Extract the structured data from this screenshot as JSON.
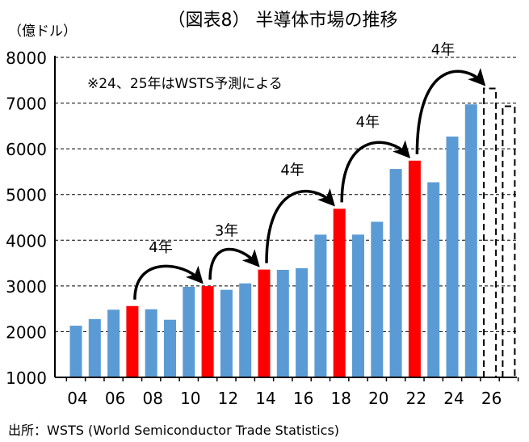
{
  "chart_data": {
    "type": "bar",
    "title": "（図表8） 半導体市場の推移",
    "ylabel": "（億ドル）",
    "note": "※24、25年はWSTS予測による",
    "source": "出所：WSTS (World Semiconductor Trade Statistics)",
    "ylim": [
      1000,
      8000
    ],
    "yticks": [
      "1000",
      "2000",
      "3000",
      "4000",
      "5000",
      "6000",
      "7000",
      "8000"
    ],
    "xticks": [
      "04",
      "06",
      "08",
      "10",
      "12",
      "14",
      "16",
      "18",
      "20",
      "22",
      "24",
      "26"
    ],
    "grid": "horizontal dashed",
    "categories": [
      "04",
      "05",
      "06",
      "07",
      "08",
      "09",
      "10",
      "11",
      "12",
      "13",
      "14",
      "15",
      "16",
      "17",
      "18",
      "19",
      "20",
      "21",
      "22",
      "23",
      "24",
      "25",
      "26",
      "27"
    ],
    "values": [
      2130,
      2275,
      2480,
      2560,
      2490,
      2260,
      2980,
      2995,
      2915,
      3056,
      3358,
      3352,
      3389,
      4122,
      4688,
      4123,
      4404,
      5559,
      5741,
      5268,
      6268,
      6972,
      7320,
      6930
    ],
    "styles": [
      "blue",
      "blue",
      "blue",
      "red",
      "blue",
      "blue",
      "blue",
      "red",
      "blue",
      "blue",
      "red",
      "blue",
      "blue",
      "blue",
      "red",
      "blue",
      "blue",
      "blue",
      "red",
      "blue",
      "blue",
      "blue",
      "dashed",
      "dashed"
    ],
    "colors": {
      "blue": "#5b9bd5",
      "red": "#ff0000"
    },
    "annotations": [
      {
        "from": "07",
        "to": "11",
        "label": "4年"
      },
      {
        "from": "11",
        "to": "14",
        "label": "3年"
      },
      {
        "from": "14",
        "to": "18",
        "label": "4年"
      },
      {
        "from": "18",
        "to": "22",
        "label": "4年"
      },
      {
        "from": "22",
        "to": "26",
        "label": "4年"
      }
    ]
  }
}
